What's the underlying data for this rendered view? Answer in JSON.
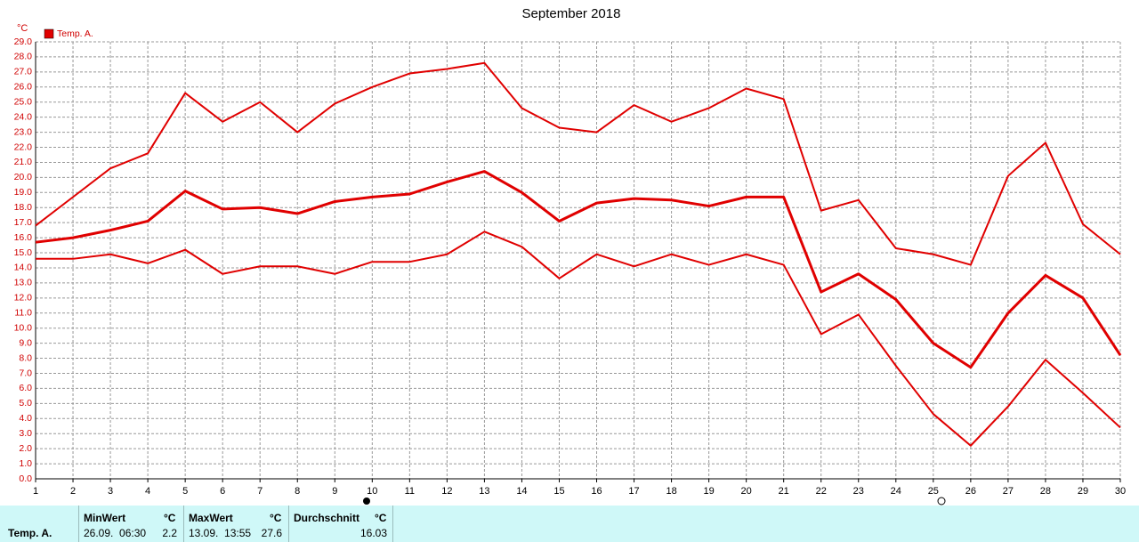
{
  "chart_data": {
    "type": "line",
    "title": "September 2018",
    "y_label": "°C",
    "x": [
      1,
      2,
      3,
      4,
      5,
      6,
      7,
      8,
      9,
      10,
      11,
      12,
      13,
      14,
      15,
      16,
      17,
      18,
      19,
      20,
      21,
      22,
      23,
      24,
      25,
      26,
      27,
      28,
      29,
      30
    ],
    "xlim": [
      1,
      30
    ],
    "xticks": [
      1,
      2,
      3,
      4,
      5,
      6,
      7,
      8,
      9,
      10,
      11,
      12,
      13,
      14,
      15,
      16,
      17,
      18,
      19,
      20,
      21,
      22,
      23,
      24,
      25,
      26,
      27,
      28,
      29,
      30
    ],
    "ylim": [
      0,
      29
    ],
    "yticks": [
      {
        "value": 0,
        "label": "0.0"
      },
      {
        "value": 1,
        "label": "1.0"
      },
      {
        "value": 2,
        "label": "2.0"
      },
      {
        "value": 3,
        "label": "3.0"
      },
      {
        "value": 4,
        "label": "4.0"
      },
      {
        "value": 5,
        "label": "5.0"
      },
      {
        "value": 6,
        "label": "6.0"
      },
      {
        "value": 7,
        "label": "7.0"
      },
      {
        "value": 8,
        "label": "8.0"
      },
      {
        "value": 9,
        "label": "9.0"
      },
      {
        "value": 10,
        "label": "10.0"
      },
      {
        "value": 11,
        "label": "11.0"
      },
      {
        "value": 12,
        "label": "12.0"
      },
      {
        "value": 13,
        "label": "13.0"
      },
      {
        "value": 14,
        "label": "14.0"
      },
      {
        "value": 15,
        "label": "15.0"
      },
      {
        "value": 16,
        "label": "16.0"
      },
      {
        "value": 17,
        "label": "17.0"
      },
      {
        "value": 18,
        "label": "18.0"
      },
      {
        "value": 19,
        "label": "19.0"
      },
      {
        "value": 20,
        "label": "20.0"
      },
      {
        "value": 21,
        "label": "21.0"
      },
      {
        "value": 22,
        "label": "22.0"
      },
      {
        "value": 23,
        "label": "23.0"
      },
      {
        "value": 24,
        "label": "24.0"
      },
      {
        "value": 25,
        "label": "25.0"
      },
      {
        "value": 26,
        "label": "26.0"
      },
      {
        "value": 27,
        "label": "27.0"
      },
      {
        "value": 28,
        "label": "28.0"
      },
      {
        "value": 29,
        "label": "29.0"
      }
    ],
    "grid": true,
    "series": [
      {
        "name": "Temp. A.",
        "color": "#e00000",
        "line_width": 2,
        "values": [
          16.8,
          18.7,
          20.6,
          21.6,
          25.6,
          23.7,
          25.0,
          23.0,
          24.9,
          26.0,
          26.9,
          27.2,
          27.6,
          24.6,
          23.3,
          23.0,
          24.8,
          23.7,
          24.6,
          25.9,
          25.2,
          17.8,
          18.5,
          15.3,
          14.9,
          14.2,
          20.1,
          22.3,
          16.9,
          14.9
        ]
      },
      {
        "color": "#e00000",
        "line_width": 3,
        "values": [
          15.7,
          16.0,
          16.5,
          17.1,
          19.1,
          17.9,
          18.0,
          17.6,
          18.4,
          18.7,
          18.9,
          19.7,
          20.4,
          19.0,
          17.1,
          18.3,
          18.6,
          18.5,
          18.1,
          18.7,
          18.7,
          12.4,
          13.6,
          11.9,
          9.0,
          7.4,
          11.0,
          13.5,
          12.0,
          8.2
        ]
      },
      {
        "color": "#e00000",
        "line_width": 2,
        "values": [
          14.6,
          14.6,
          14.9,
          14.3,
          15.2,
          13.6,
          14.1,
          14.1,
          13.6,
          14.4,
          14.4,
          14.9,
          16.4,
          15.4,
          13.3,
          14.9,
          14.1,
          14.9,
          14.2,
          14.9,
          14.2,
          9.6,
          10.9,
          7.5,
          4.3,
          2.2,
          4.8,
          7.9,
          5.7,
          3.4
        ]
      }
    ]
  },
  "stats": {
    "label": "Temp. A.",
    "min": {
      "title": "MinWert",
      "unit": "°C",
      "time": "26.09.  06:30",
      "value": "2.2"
    },
    "max": {
      "title": "MaxWert",
      "unit": "°C",
      "time": "13.09.  13:55",
      "value": "27.6"
    },
    "avg": {
      "title": "Durchschnitt",
      "unit": "°C",
      "value": "16.03"
    }
  }
}
